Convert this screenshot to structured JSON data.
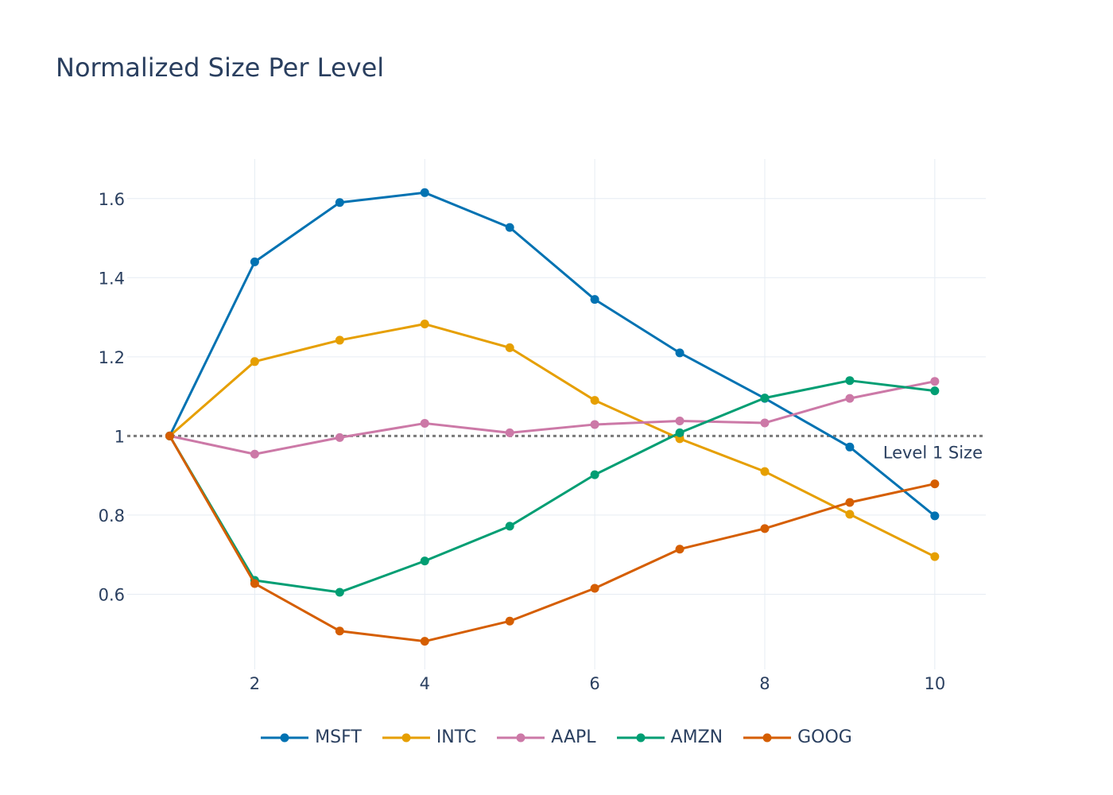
{
  "colors": {
    "grid": "#e6ecf3",
    "text": "#2a3f5f",
    "reference_line": "#7a7a7a"
  },
  "chart_data": {
    "type": "line",
    "title": "Normalized Size Per Level",
    "xlabel": "",
    "ylabel": "",
    "xlim": [
      0.5,
      10.6
    ],
    "ylim": [
      0.41,
      1.7
    ],
    "xticks": [
      2,
      4,
      6,
      8,
      10
    ],
    "xtick_labels": [
      "2",
      "4",
      "6",
      "8",
      "10"
    ],
    "yticks": [
      0.6,
      0.8,
      1.0,
      1.2,
      1.4,
      1.6
    ],
    "ytick_labels": [
      "0.6",
      "0.8",
      "1",
      "1.2",
      "1.4",
      "1.6"
    ],
    "grid": true,
    "legend_position": "bottom-center",
    "x": [
      1,
      2,
      3,
      4,
      5,
      6,
      7,
      8,
      9,
      10
    ],
    "series": [
      {
        "name": "MSFT",
        "color": "#0072B2",
        "values": [
          1.0,
          1.44,
          1.59,
          1.615,
          1.527,
          1.345,
          1.21,
          1.095,
          0.972,
          0.798
        ]
      },
      {
        "name": "INTC",
        "color": "#E69F00",
        "values": [
          1.0,
          1.188,
          1.242,
          1.283,
          1.223,
          1.09,
          0.993,
          0.91,
          0.802,
          0.695
        ]
      },
      {
        "name": "AAPL",
        "color": "#CC79A7",
        "values": [
          1.0,
          0.954,
          0.996,
          1.032,
          1.008,
          1.029,
          1.038,
          1.033,
          1.095,
          1.138
        ]
      },
      {
        "name": "AMZN",
        "color": "#009E73",
        "values": [
          1.0,
          0.635,
          0.605,
          0.684,
          0.772,
          0.902,
          1.008,
          1.096,
          1.14,
          1.114
        ]
      },
      {
        "name": "GOOG",
        "color": "#D55E00",
        "values": [
          1.0,
          0.627,
          0.507,
          0.481,
          0.532,
          0.615,
          0.714,
          0.766,
          0.832,
          0.879
        ]
      }
    ],
    "reference_line": {
      "y": 1.0,
      "label": "Level 1 Size"
    }
  }
}
